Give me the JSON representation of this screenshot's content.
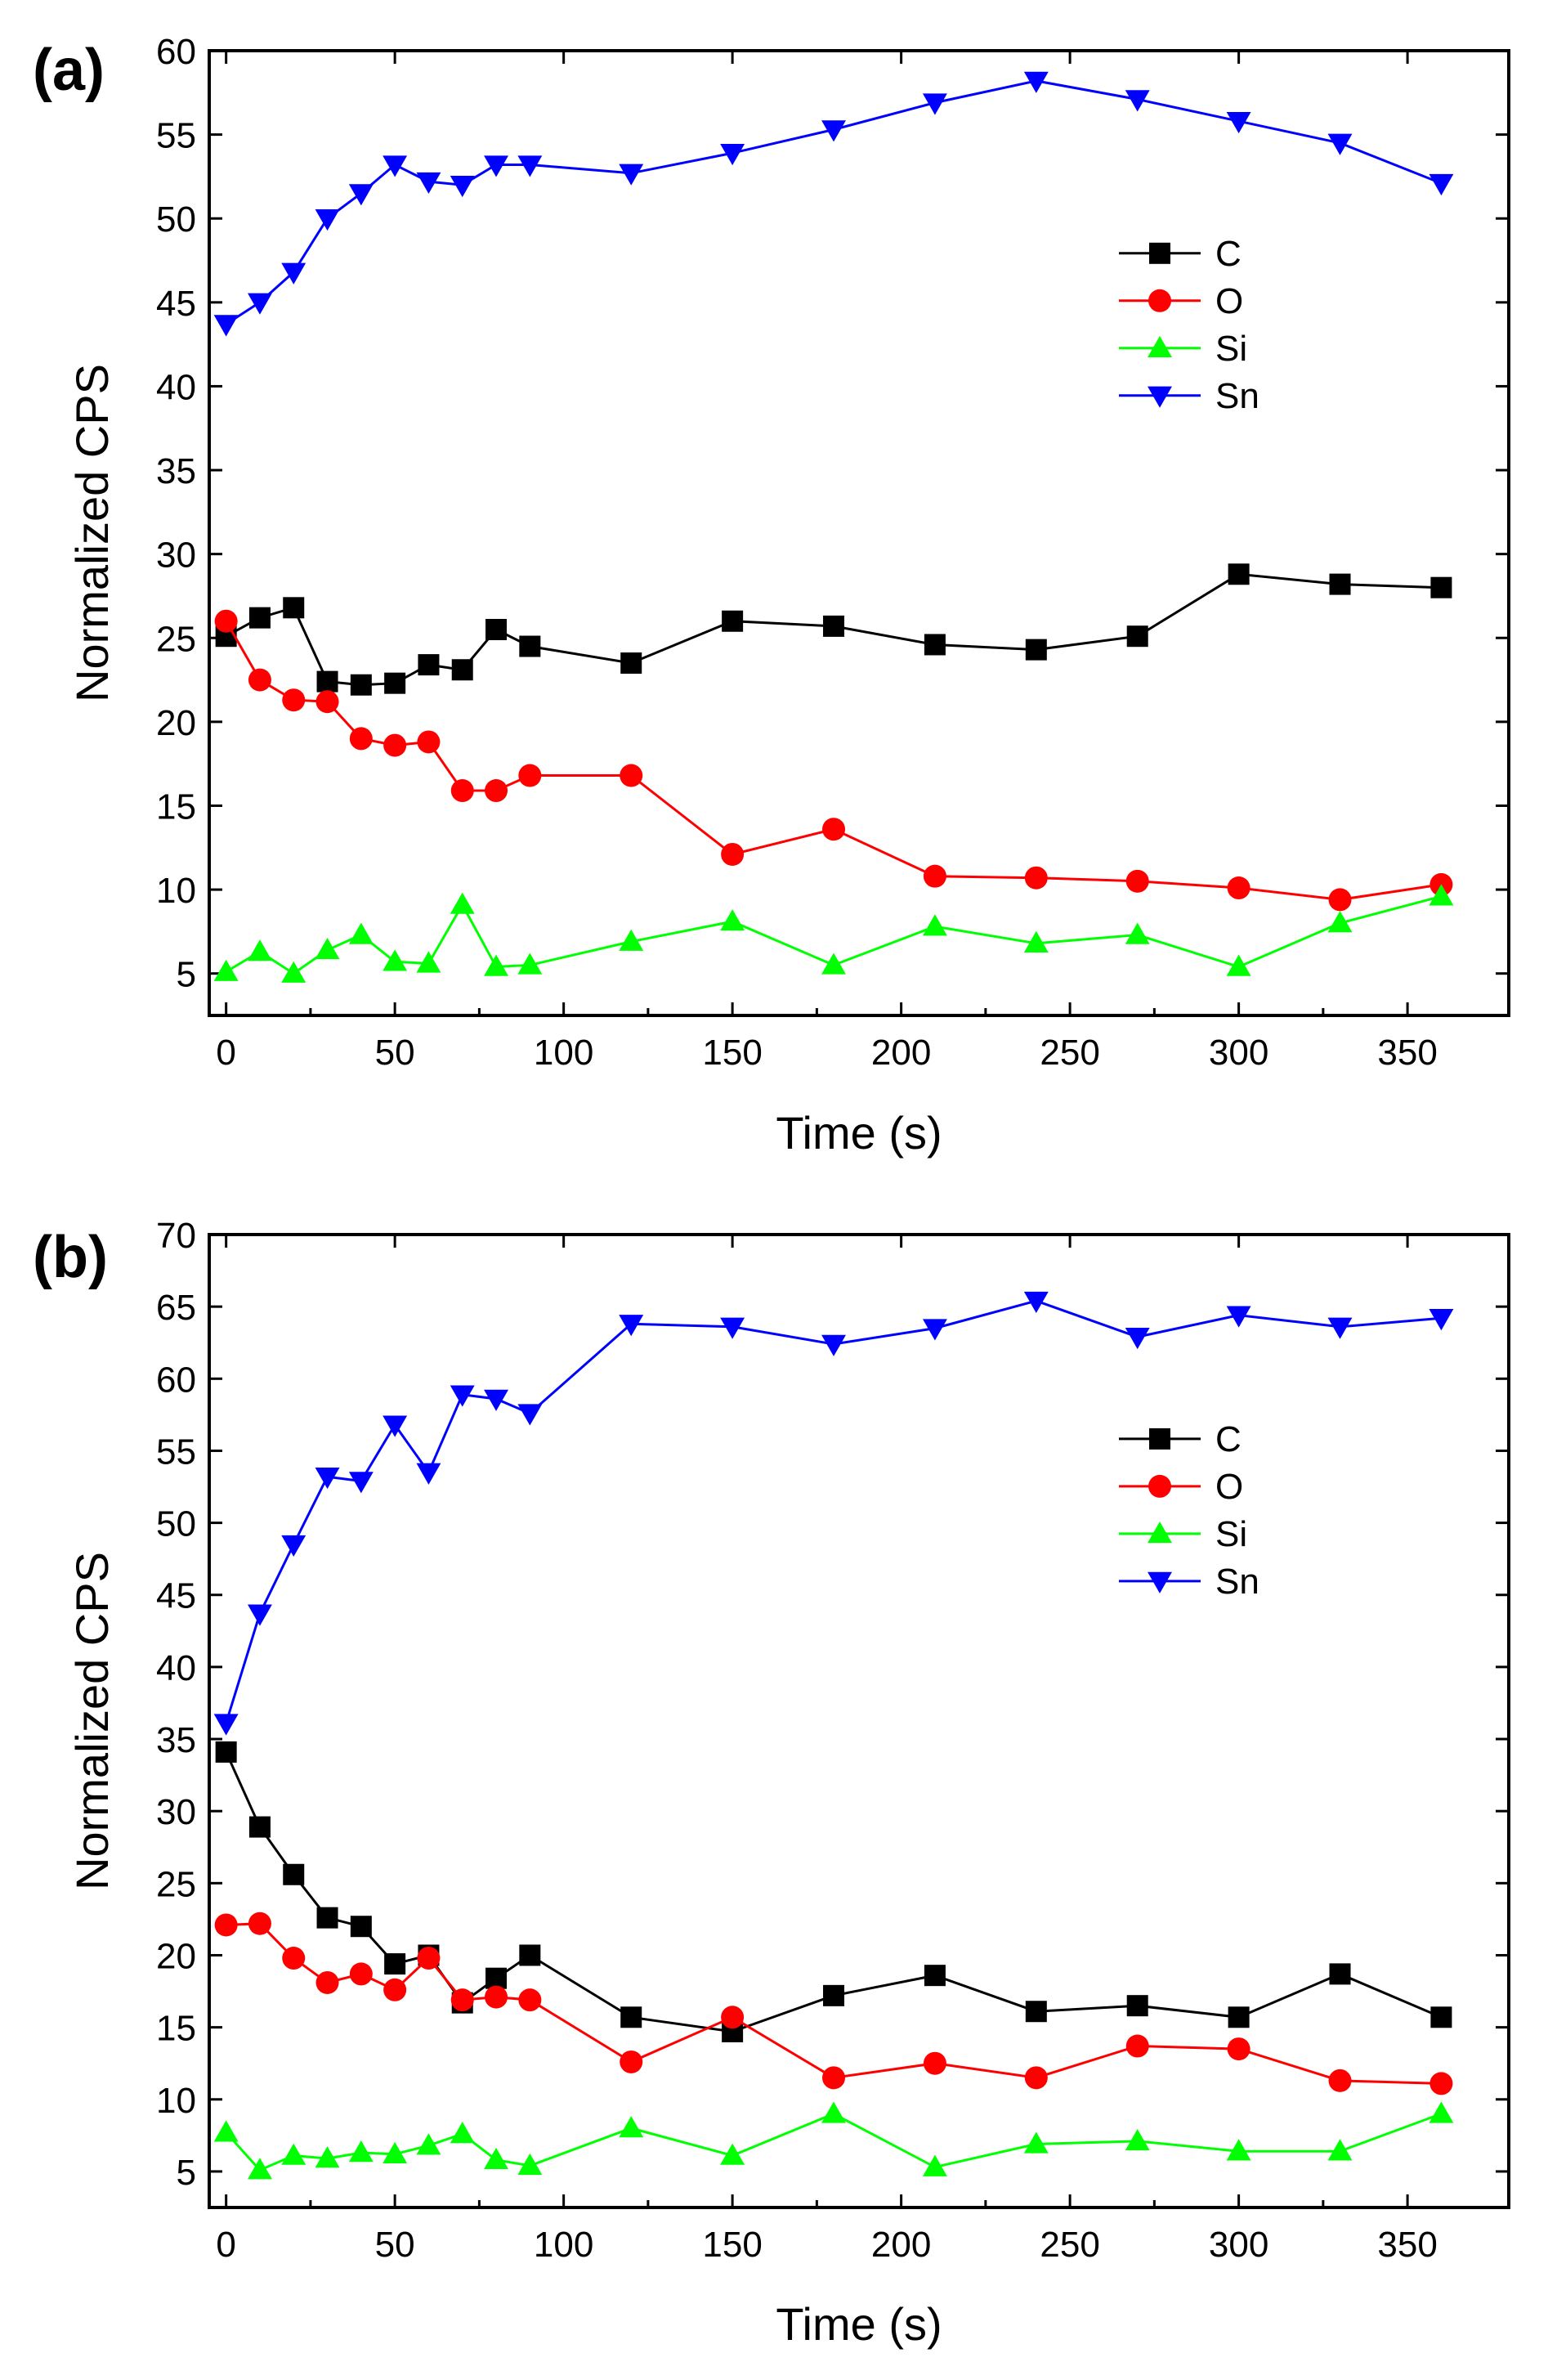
{
  "chart_data": [
    {
      "type": "line",
      "panel_label": "(a)",
      "xlabel": "Time (s)",
      "ylabel": "Normalized CPS",
      "xlim": [
        -5,
        380
      ],
      "ylim": [
        2.5,
        60
      ],
      "xticks": [
        0,
        50,
        100,
        150,
        200,
        250,
        300,
        350
      ],
      "yticks": [
        5,
        10,
        15,
        20,
        25,
        30,
        35,
        40,
        45,
        50,
        55,
        60
      ],
      "legend_position": "middle-right",
      "x": [
        0,
        10,
        20,
        30,
        40,
        50,
        60,
        70,
        80,
        90,
        120,
        150,
        180,
        210,
        240,
        270,
        300,
        330,
        360
      ],
      "series": [
        {
          "name": "C",
          "color": "#000000",
          "marker": "square",
          "values": [
            25.1,
            26.2,
            26.8,
            22.4,
            22.2,
            22.3,
            23.4,
            23.1,
            25.5,
            24.5,
            23.5,
            26.0,
            25.7,
            24.6,
            24.3,
            25.1,
            28.8,
            28.2,
            28.0
          ]
        },
        {
          "name": "O",
          "color": "#ff0000",
          "marker": "circle",
          "values": [
            26.0,
            22.5,
            21.3,
            21.2,
            19.0,
            18.6,
            18.8,
            15.9,
            15.9,
            16.8,
            16.8,
            12.1,
            13.6,
            10.8,
            10.7,
            10.5,
            10.1,
            9.4,
            10.3
          ]
        },
        {
          "name": "Si",
          "color": "#00ff00",
          "marker": "triangle-up",
          "values": [
            5.1,
            6.3,
            5.0,
            6.4,
            7.3,
            5.7,
            5.6,
            9.1,
            5.4,
            5.5,
            6.9,
            8.1,
            5.5,
            7.8,
            6.8,
            7.3,
            5.4,
            8.0,
            9.6
          ]
        },
        {
          "name": "Sn",
          "color": "#0000ff",
          "marker": "triangle-down",
          "values": [
            43.7,
            45.0,
            46.8,
            50.0,
            51.5,
            53.2,
            52.2,
            52.0,
            53.2,
            53.2,
            52.7,
            53.9,
            55.3,
            56.9,
            58.2,
            57.1,
            55.8,
            54.5,
            52.1
          ]
        }
      ]
    },
    {
      "type": "line",
      "panel_label": "(b)",
      "xlabel": "Time (s)",
      "ylabel": "Normalized CPS",
      "xlim": [
        -5,
        380
      ],
      "ylim": [
        2.5,
        70
      ],
      "xticks": [
        0,
        50,
        100,
        150,
        200,
        250,
        300,
        350
      ],
      "yticks": [
        5,
        10,
        15,
        20,
        25,
        30,
        35,
        40,
        45,
        50,
        55,
        60,
        65,
        70
      ],
      "legend_position": "middle-right",
      "x": [
        0,
        10,
        20,
        30,
        40,
        50,
        60,
        70,
        80,
        90,
        120,
        150,
        180,
        210,
        240,
        270,
        300,
        330,
        360
      ],
      "series": [
        {
          "name": "C",
          "color": "#000000",
          "marker": "square",
          "values": [
            34.1,
            28.9,
            25.6,
            22.6,
            22.0,
            19.4,
            20.0,
            16.7,
            18.4,
            20.0,
            15.7,
            14.7,
            17.2,
            18.6,
            16.1,
            16.5,
            15.7,
            18.7,
            15.7
          ]
        },
        {
          "name": "O",
          "color": "#ff0000",
          "marker": "circle",
          "values": [
            22.1,
            22.2,
            19.8,
            18.1,
            18.7,
            17.6,
            19.8,
            16.9,
            17.1,
            16.9,
            12.6,
            15.7,
            11.5,
            12.5,
            11.5,
            13.7,
            13.5,
            11.3,
            11.1
          ]
        },
        {
          "name": "Si",
          "color": "#00ff00",
          "marker": "triangle-up",
          "values": [
            7.7,
            5.1,
            6.1,
            5.9,
            6.3,
            6.2,
            6.8,
            7.6,
            5.8,
            5.4,
            8.0,
            6.1,
            9.0,
            5.3,
            6.9,
            7.1,
            6.4,
            6.4,
            9.0
          ]
        },
        {
          "name": "Sn",
          "color": "#0000ff",
          "marker": "triangle-down",
          "values": [
            36.1,
            43.7,
            48.5,
            53.2,
            52.9,
            56.8,
            53.5,
            58.9,
            58.6,
            57.6,
            63.8,
            63.6,
            62.4,
            63.5,
            65.4,
            62.9,
            64.4,
            63.6,
            64.2
          ]
        }
      ]
    }
  ]
}
